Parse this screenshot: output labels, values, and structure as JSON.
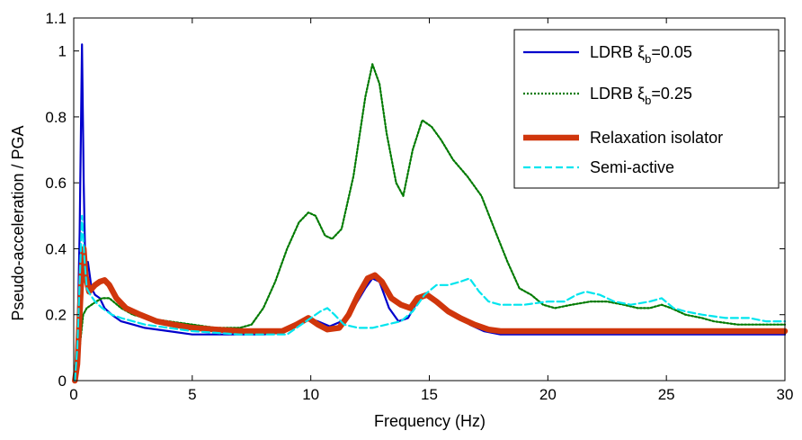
{
  "chart_data": {
    "type": "line",
    "title": "",
    "xlabel": "Frequency (Hz)",
    "ylabel": "Pseudo-acceleration / PGA",
    "xlim": [
      0,
      30
    ],
    "ylim": [
      0,
      1.1
    ],
    "xticks": [
      "0",
      "5",
      "10",
      "15",
      "20",
      "25",
      "30"
    ],
    "yticks": [
      "0",
      "0.2",
      "0.4",
      "0.6",
      "0.8",
      "1",
      "1.1"
    ],
    "grid": false,
    "legend_position": "top-right",
    "series": [
      {
        "name": "LDRB ξ_b=0.05",
        "legend_main": "LDRB ξ",
        "legend_sub": "b",
        "legend_tail": "=0.05",
        "color": "#0000cc",
        "style": "solid",
        "points": [
          [
            0.05,
            0.0
          ],
          [
            0.15,
            0.1
          ],
          [
            0.25,
            0.45
          ],
          [
            0.35,
            1.02
          ],
          [
            0.42,
            0.6
          ],
          [
            0.5,
            0.3
          ],
          [
            0.6,
            0.36
          ],
          [
            0.75,
            0.28
          ],
          [
            0.9,
            0.26
          ],
          [
            1.1,
            0.25
          ],
          [
            1.3,
            0.22
          ],
          [
            1.6,
            0.2
          ],
          [
            2.0,
            0.18
          ],
          [
            2.5,
            0.17
          ],
          [
            3.0,
            0.16
          ],
          [
            4.0,
            0.15
          ],
          [
            5.0,
            0.14
          ],
          [
            6.0,
            0.14
          ],
          [
            7.0,
            0.14
          ],
          [
            8.0,
            0.14
          ],
          [
            8.7,
            0.145
          ],
          [
            9.3,
            0.17
          ],
          [
            9.8,
            0.19
          ],
          [
            10.3,
            0.18
          ],
          [
            10.8,
            0.165
          ],
          [
            11.3,
            0.18
          ],
          [
            11.8,
            0.22
          ],
          [
            12.3,
            0.28
          ],
          [
            12.6,
            0.31
          ],
          [
            12.9,
            0.3
          ],
          [
            13.3,
            0.22
          ],
          [
            13.7,
            0.18
          ],
          [
            14.1,
            0.19
          ],
          [
            14.5,
            0.24
          ],
          [
            14.9,
            0.26
          ],
          [
            15.3,
            0.24
          ],
          [
            15.7,
            0.22
          ],
          [
            16.2,
            0.2
          ],
          [
            16.7,
            0.17
          ],
          [
            17.3,
            0.15
          ],
          [
            18.0,
            0.14
          ],
          [
            20.0,
            0.14
          ],
          [
            25.0,
            0.14
          ],
          [
            30.0,
            0.14
          ]
        ]
      },
      {
        "name": "LDRB ξ_b=0.25",
        "legend_main": "LDRB ξ",
        "legend_sub": "b",
        "legend_tail": "=0.25",
        "color": "#007a00",
        "style": "dotted",
        "points": [
          [
            0.05,
            0.0
          ],
          [
            0.25,
            0.1
          ],
          [
            0.4,
            0.2
          ],
          [
            0.55,
            0.22
          ],
          [
            0.75,
            0.23
          ],
          [
            0.95,
            0.24
          ],
          [
            1.2,
            0.25
          ],
          [
            1.5,
            0.25
          ],
          [
            2.0,
            0.22
          ],
          [
            2.5,
            0.2
          ],
          [
            3.0,
            0.19
          ],
          [
            4.0,
            0.18
          ],
          [
            5.0,
            0.17
          ],
          [
            6.0,
            0.16
          ],
          [
            7.0,
            0.16
          ],
          [
            7.5,
            0.17
          ],
          [
            8.0,
            0.22
          ],
          [
            8.5,
            0.3
          ],
          [
            9.0,
            0.4
          ],
          [
            9.5,
            0.48
          ],
          [
            9.9,
            0.51
          ],
          [
            10.2,
            0.5
          ],
          [
            10.6,
            0.44
          ],
          [
            10.9,
            0.43
          ],
          [
            11.3,
            0.46
          ],
          [
            11.8,
            0.62
          ],
          [
            12.3,
            0.86
          ],
          [
            12.6,
            0.96
          ],
          [
            12.9,
            0.9
          ],
          [
            13.2,
            0.75
          ],
          [
            13.6,
            0.6
          ],
          [
            13.9,
            0.56
          ],
          [
            14.3,
            0.7
          ],
          [
            14.7,
            0.79
          ],
          [
            15.1,
            0.77
          ],
          [
            15.5,
            0.73
          ],
          [
            16.0,
            0.67
          ],
          [
            16.6,
            0.62
          ],
          [
            17.2,
            0.56
          ],
          [
            17.8,
            0.45
          ],
          [
            18.3,
            0.36
          ],
          [
            18.8,
            0.28
          ],
          [
            19.3,
            0.26
          ],
          [
            19.8,
            0.23
          ],
          [
            20.3,
            0.22
          ],
          [
            21.0,
            0.23
          ],
          [
            21.8,
            0.24
          ],
          [
            22.5,
            0.24
          ],
          [
            23.2,
            0.23
          ],
          [
            23.8,
            0.22
          ],
          [
            24.3,
            0.22
          ],
          [
            24.8,
            0.23
          ],
          [
            25.2,
            0.22
          ],
          [
            25.8,
            0.2
          ],
          [
            26.5,
            0.19
          ],
          [
            27.0,
            0.18
          ],
          [
            28.0,
            0.17
          ],
          [
            29.0,
            0.17
          ],
          [
            30.0,
            0.17
          ]
        ]
      },
      {
        "name": "Relaxation isolator",
        "color": "#d0360c",
        "style": "thick",
        "points": [
          [
            0.05,
            0.0
          ],
          [
            0.15,
            0.05
          ],
          [
            0.25,
            0.2
          ],
          [
            0.35,
            0.35
          ],
          [
            0.42,
            0.4
          ],
          [
            0.5,
            0.32
          ],
          [
            0.65,
            0.27
          ],
          [
            0.9,
            0.29
          ],
          [
            1.1,
            0.3
          ],
          [
            1.3,
            0.305
          ],
          [
            1.5,
            0.29
          ],
          [
            1.8,
            0.25
          ],
          [
            2.2,
            0.22
          ],
          [
            2.8,
            0.2
          ],
          [
            3.5,
            0.18
          ],
          [
            4.2,
            0.17
          ],
          [
            5.0,
            0.16
          ],
          [
            6.0,
            0.155
          ],
          [
            7.0,
            0.15
          ],
          [
            8.0,
            0.15
          ],
          [
            8.8,
            0.15
          ],
          [
            9.4,
            0.17
          ],
          [
            9.9,
            0.19
          ],
          [
            10.3,
            0.17
          ],
          [
            10.7,
            0.155
          ],
          [
            11.2,
            0.16
          ],
          [
            11.6,
            0.2
          ],
          [
            12.0,
            0.26
          ],
          [
            12.4,
            0.31
          ],
          [
            12.7,
            0.32
          ],
          [
            13.0,
            0.3
          ],
          [
            13.4,
            0.25
          ],
          [
            13.8,
            0.23
          ],
          [
            14.2,
            0.22
          ],
          [
            14.5,
            0.25
          ],
          [
            14.9,
            0.26
          ],
          [
            15.3,
            0.24
          ],
          [
            15.8,
            0.21
          ],
          [
            16.3,
            0.19
          ],
          [
            16.9,
            0.17
          ],
          [
            17.5,
            0.155
          ],
          [
            18.0,
            0.15
          ],
          [
            20.0,
            0.15
          ],
          [
            25.0,
            0.15
          ],
          [
            30.0,
            0.15
          ]
        ]
      },
      {
        "name": "Semi-active",
        "color": "#00e5ee",
        "style": "dashed",
        "points": [
          [
            0.05,
            0.0
          ],
          [
            0.15,
            0.1
          ],
          [
            0.25,
            0.3
          ],
          [
            0.35,
            0.5
          ],
          [
            0.45,
            0.37
          ],
          [
            0.55,
            0.28
          ],
          [
            0.7,
            0.26
          ],
          [
            0.9,
            0.24
          ],
          [
            1.2,
            0.22
          ],
          [
            1.6,
            0.2
          ],
          [
            2.0,
            0.19
          ],
          [
            3.0,
            0.17
          ],
          [
            4.0,
            0.16
          ],
          [
            5.0,
            0.15
          ],
          [
            6.0,
            0.145
          ],
          [
            7.0,
            0.14
          ],
          [
            8.0,
            0.14
          ],
          [
            9.0,
            0.14
          ],
          [
            9.6,
            0.17
          ],
          [
            10.0,
            0.19
          ],
          [
            10.4,
            0.21
          ],
          [
            10.7,
            0.22
          ],
          [
            11.0,
            0.2
          ],
          [
            11.4,
            0.17
          ],
          [
            12.0,
            0.16
          ],
          [
            12.6,
            0.16
          ],
          [
            13.2,
            0.17
          ],
          [
            13.8,
            0.18
          ],
          [
            14.3,
            0.21
          ],
          [
            14.8,
            0.26
          ],
          [
            15.3,
            0.29
          ],
          [
            15.8,
            0.29
          ],
          [
            16.3,
            0.3
          ],
          [
            16.7,
            0.31
          ],
          [
            17.1,
            0.27
          ],
          [
            17.5,
            0.24
          ],
          [
            18.0,
            0.23
          ],
          [
            19.0,
            0.23
          ],
          [
            20.0,
            0.24
          ],
          [
            20.7,
            0.24
          ],
          [
            21.2,
            0.26
          ],
          [
            21.6,
            0.27
          ],
          [
            22.2,
            0.26
          ],
          [
            22.8,
            0.24
          ],
          [
            23.5,
            0.23
          ],
          [
            24.3,
            0.24
          ],
          [
            24.8,
            0.25
          ],
          [
            25.3,
            0.22
          ],
          [
            25.8,
            0.21
          ],
          [
            26.5,
            0.2
          ],
          [
            27.5,
            0.19
          ],
          [
            28.5,
            0.19
          ],
          [
            29.2,
            0.18
          ],
          [
            30.0,
            0.18
          ]
        ]
      }
    ]
  }
}
